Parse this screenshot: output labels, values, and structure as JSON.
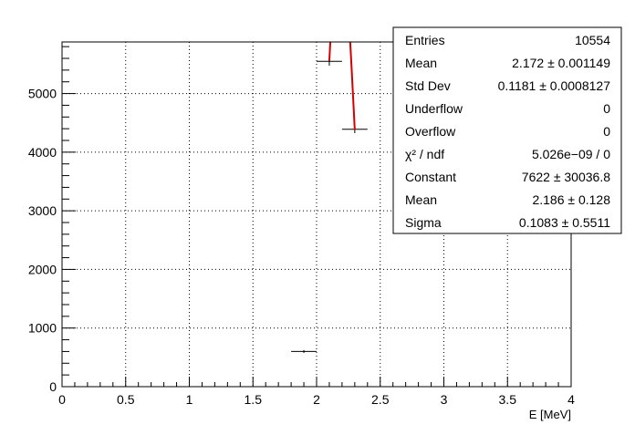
{
  "colors": {
    "axis": "#000000",
    "grid": "#000000",
    "data": "#000000",
    "fit": "#d40000",
    "stats_bg": "#ffffff",
    "stats_border": "#000000"
  },
  "stats_box": {
    "rows": [
      {
        "label": "Entries",
        "value": "10554"
      },
      {
        "label": "Mean",
        "value": "2.172 ± 0.001149"
      },
      {
        "label": "Std Dev",
        "value": "0.1181 ± 0.0008127"
      },
      {
        "label": "Underflow",
        "value": "0"
      },
      {
        "label": "Overflow",
        "value": "0"
      },
      {
        "label": "χ² / ndf",
        "value": "5.026e−09 / 0"
      },
      {
        "label": "Constant",
        "value": "7622 ± 30036.8"
      },
      {
        "label": "Mean",
        "value": "2.186 ± 0.128"
      },
      {
        "label": "Sigma",
        "value": "0.1083 ± 0.5511"
      }
    ]
  },
  "chart_data": {
    "type": "histogram",
    "title": "",
    "xlabel": "E [MeV]",
    "ylabel": "",
    "xlim": [
      0,
      4
    ],
    "ylim": [
      0,
      5880
    ],
    "grid": true,
    "legend": "top-right",
    "x_ticks": [
      0,
      0.5,
      1,
      1.5,
      2,
      2.5,
      3,
      3.5,
      4
    ],
    "x_tick_labels": [
      "0",
      "0.5",
      "1",
      "1.5",
      "2",
      "2.5",
      "3",
      "3.5",
      "4"
    ],
    "y_ticks": [
      0,
      1000,
      2000,
      3000,
      4000,
      5000
    ],
    "y_tick_labels": [
      "0",
      "1000",
      "2000",
      "3000",
      "4000",
      "5000"
    ],
    "bins": [
      {
        "x_low": 1.8,
        "x_high": 2.0,
        "y": 600,
        "err": 25
      },
      {
        "x_low": 2.0,
        "x_high": 2.2,
        "y": 5550,
        "err": 75
      },
      {
        "x_low": 2.2,
        "x_high": 2.4,
        "y": 4390,
        "err": 66
      }
    ],
    "fit": {
      "function": "gaus",
      "constant": 7622,
      "mean": 2.186,
      "sigma": 0.1083,
      "range": [
        2.1,
        2.3
      ]
    }
  }
}
